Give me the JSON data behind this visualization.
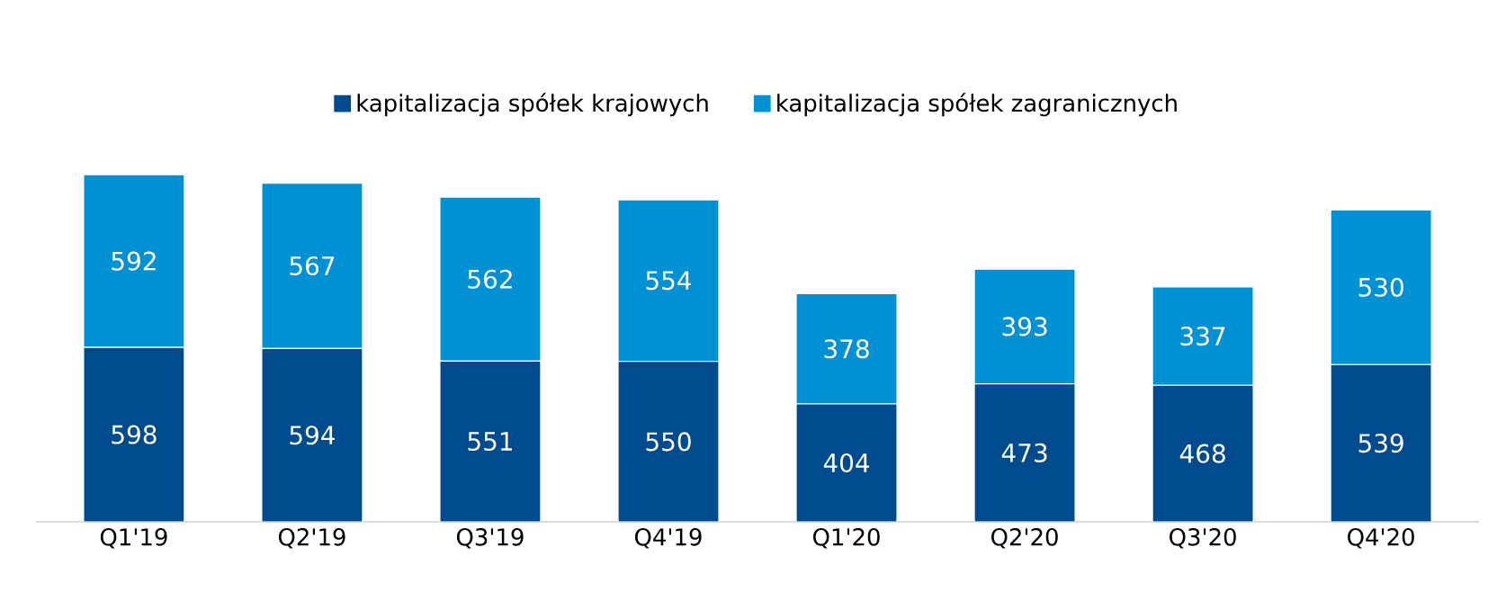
{
  "chart_data": {
    "type": "bar",
    "stacked": true,
    "data_labels": true,
    "legend": "top",
    "categories": [
      "Q1'19",
      "Q2'19",
      "Q3'19",
      "Q4'19",
      "Q1'20",
      "Q2'20",
      "Q3'20",
      "Q4'20"
    ],
    "series": [
      {
        "name": "kapitalizacja spółek krajowych",
        "color": "#004b8d",
        "values": [
          598,
          594,
          551,
          550,
          404,
          473,
          468,
          539
        ]
      },
      {
        "name": "kapitalizacja spółek zagranicznych",
        "color": "#0091d5",
        "values": [
          592,
          567,
          562,
          554,
          378,
          393,
          337,
          530
        ]
      }
    ]
  }
}
